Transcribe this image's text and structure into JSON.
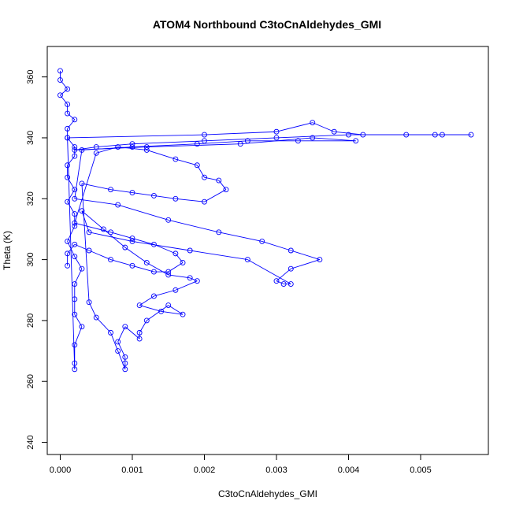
{
  "chart_data": {
    "type": "scatter",
    "title": "ATOM4 Northbound C3toCnAldehydes_GMI",
    "xlabel": "C3toCnAldehydes_GMI",
    "ylabel": "Theta (K)",
    "xlim": [
      -0.00018,
      0.00594
    ],
    "ylim": [
      236,
      370
    ],
    "x_ticks": [
      "0.000",
      "0.001",
      "0.002",
      "0.003",
      "0.004",
      "0.005"
    ],
    "y_ticks": [
      "240",
      "260",
      "280",
      "300",
      "320",
      "340",
      "360"
    ],
    "grid": false,
    "series_color": "#0000ff",
    "series": [
      {
        "style": "points-connected-by-lines",
        "points": [
          [
            0.0,
            362
          ],
          [
            0.0,
            359
          ],
          [
            0.0001,
            356
          ],
          [
            0.0,
            354
          ],
          [
            0.0001,
            351
          ],
          [
            0.0001,
            348
          ],
          [
            0.0002,
            346
          ],
          [
            0.0001,
            343
          ],
          [
            0.0001,
            340
          ],
          [
            0.0002,
            337
          ],
          [
            0.0002,
            334
          ],
          [
            0.0001,
            331
          ],
          [
            0.0001,
            327
          ],
          [
            0.0002,
            323
          ],
          [
            0.0001,
            319
          ],
          [
            0.0002,
            315
          ],
          [
            0.0002,
            311
          ],
          [
            0.0001,
            306
          ],
          [
            0.0002,
            301
          ],
          [
            0.0003,
            297
          ],
          [
            0.0002,
            292
          ],
          [
            0.0002,
            287
          ],
          [
            0.0002,
            282
          ],
          [
            0.0003,
            278
          ],
          [
            0.0002,
            272
          ],
          [
            0.0002,
            266
          ],
          [
            0.0002,
            264
          ],
          [
            0.0001,
            340
          ],
          [
            0.002,
            341
          ],
          [
            0.003,
            342
          ],
          [
            0.0035,
            345
          ],
          [
            0.0038,
            342
          ],
          [
            0.0042,
            341
          ],
          [
            0.0048,
            341
          ],
          [
            0.0052,
            341
          ],
          [
            0.0057,
            341
          ],
          [
            0.0053,
            341
          ],
          [
            0.004,
            341
          ],
          [
            0.003,
            340
          ],
          [
            0.002,
            339
          ],
          [
            0.001,
            338
          ],
          [
            0.0005,
            337
          ],
          [
            0.0002,
            336
          ],
          [
            0.0012,
            337
          ],
          [
            0.0025,
            338
          ],
          [
            0.0035,
            340
          ],
          [
            0.0041,
            339
          ],
          [
            0.0033,
            339
          ],
          [
            0.0026,
            339
          ],
          [
            0.0019,
            338
          ],
          [
            0.001,
            337
          ],
          [
            0.0003,
            336
          ],
          [
            0.0002,
            320
          ],
          [
            0.0008,
            318
          ],
          [
            0.0015,
            313
          ],
          [
            0.0022,
            309
          ],
          [
            0.0028,
            306
          ],
          [
            0.0032,
            303
          ],
          [
            0.0036,
            300
          ],
          [
            0.0032,
            297
          ],
          [
            0.003,
            293
          ],
          [
            0.0031,
            292
          ],
          [
            0.0032,
            292
          ],
          [
            0.0026,
            300
          ],
          [
            0.0018,
            303
          ],
          [
            0.001,
            306
          ],
          [
            0.0004,
            309
          ],
          [
            0.0003,
            316
          ],
          [
            0.0006,
            310
          ],
          [
            0.0009,
            304
          ],
          [
            0.0012,
            299
          ],
          [
            0.0015,
            295
          ],
          [
            0.0018,
            294
          ],
          [
            0.0019,
            293
          ],
          [
            0.0016,
            290
          ],
          [
            0.0013,
            288
          ],
          [
            0.0011,
            285
          ],
          [
            0.0014,
            283
          ],
          [
            0.0017,
            282
          ],
          [
            0.0015,
            285
          ],
          [
            0.0012,
            280
          ],
          [
            0.0011,
            276
          ],
          [
            0.0011,
            274
          ],
          [
            0.0009,
            278
          ],
          [
            0.0008,
            273
          ],
          [
            0.0009,
            268
          ],
          [
            0.0009,
            266
          ],
          [
            0.0009,
            264
          ],
          [
            0.0008,
            270
          ],
          [
            0.0007,
            276
          ],
          [
            0.0005,
            281
          ],
          [
            0.0004,
            286
          ],
          [
            0.0003,
            325
          ],
          [
            0.0007,
            323
          ],
          [
            0.001,
            322
          ],
          [
            0.0013,
            321
          ],
          [
            0.0016,
            320
          ],
          [
            0.002,
            319
          ],
          [
            0.0023,
            323
          ],
          [
            0.0022,
            326
          ],
          [
            0.002,
            327
          ],
          [
            0.0019,
            331
          ],
          [
            0.0016,
            333
          ],
          [
            0.0012,
            336
          ],
          [
            0.0008,
            337
          ],
          [
            0.0005,
            335
          ],
          [
            0.0002,
            312
          ],
          [
            0.0007,
            309
          ],
          [
            0.001,
            307
          ],
          [
            0.0013,
            305
          ],
          [
            0.0016,
            302
          ],
          [
            0.0017,
            299
          ],
          [
            0.0015,
            296
          ],
          [
            0.0013,
            296
          ],
          [
            0.001,
            298
          ],
          [
            0.0007,
            300
          ],
          [
            0.0004,
            303
          ],
          [
            0.0002,
            305
          ],
          [
            0.0001,
            302
          ],
          [
            0.0001,
            298
          ]
        ]
      }
    ]
  }
}
